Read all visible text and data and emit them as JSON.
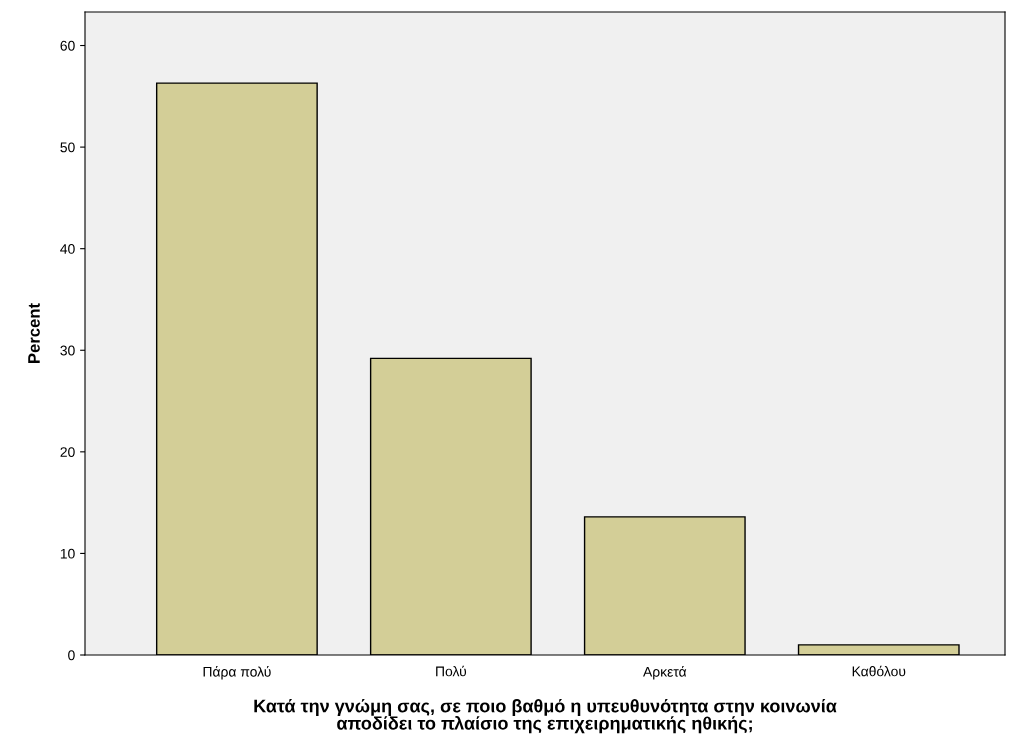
{
  "chart_data": {
    "type": "bar",
    "xlabel": "Κατά την γνώμη σας, σε ποιο βαθμό η υπευθυνότητα στην κοινωνία\nαποδίδει το πλαίσιο της επιχειρηματικής ηθικής;",
    "ylabel": "Percent",
    "categories": [
      "Πάρα πολύ",
      "Πολύ",
      "Αρκετά",
      "Καθόλου"
    ],
    "values": [
      56.3,
      29.2,
      13.6,
      1.0
    ],
    "color": "#d3ce97",
    "ylim": [
      0,
      63.3
    ],
    "yticks": [
      0,
      10,
      20,
      30,
      40,
      50,
      60
    ],
    "grid": false,
    "legend": false
  }
}
